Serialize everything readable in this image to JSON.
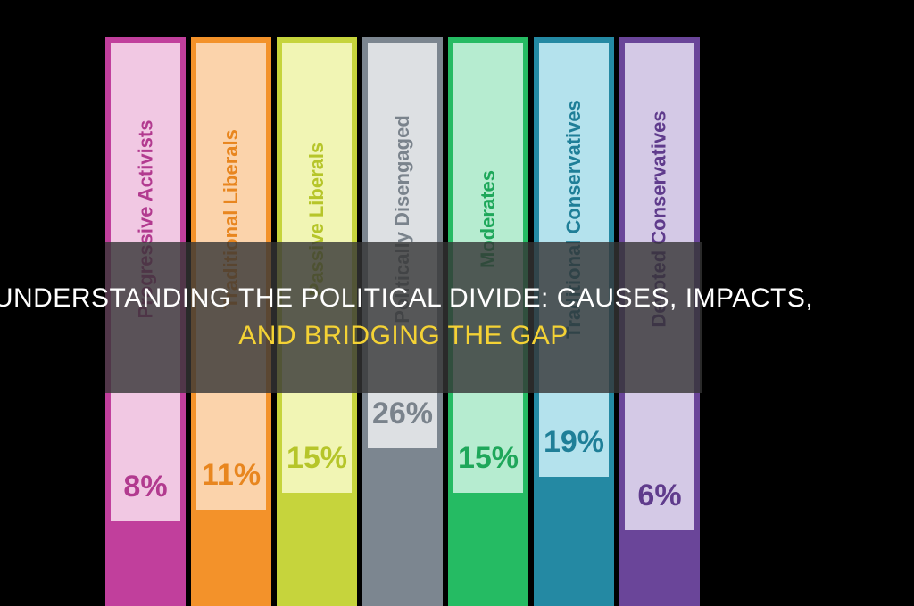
{
  "title": {
    "line1": "Understanding the Political Divide: Causes, Impacts,",
    "line2": "and Bridging the Gap"
  },
  "chart_data": {
    "type": "bar",
    "categories": [
      "Progressive Activists",
      "Traditional Liberals",
      "Passive Liberals",
      "Politically Disengaged",
      "Moderates",
      "Traditional Conservatives",
      "Devoted Conservatives"
    ],
    "values": [
      8,
      11,
      15,
      26,
      15,
      19,
      6
    ],
    "value_labels": [
      "8%",
      "11%",
      "15%",
      "26%",
      "15%",
      "19%",
      "6%"
    ],
    "ylim": [
      0,
      30
    ],
    "grid": false,
    "colors": {
      "outer": [
        "#c13f9c",
        "#f3922a",
        "#c6d43c",
        "#7c8690",
        "#25bb63",
        "#2489a3",
        "#6a4599"
      ],
      "inner": [
        "#f1c8e3",
        "#fbd3ab",
        "#f1f5b4",
        "#dde0e3",
        "#b6ecd0",
        "#b4e2ed",
        "#d4c9e6"
      ],
      "text": [
        "#b23a8f",
        "#e8861f",
        "#b6c52a",
        "#7a838c",
        "#1ea75a",
        "#1f7f98",
        "#5f3b8c"
      ]
    }
  }
}
